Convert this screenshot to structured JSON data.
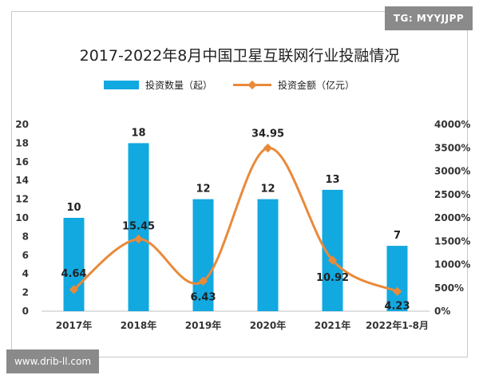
{
  "watermarks": {
    "top": "TG: MYYJJPP",
    "bottom": "www.drib-ll.com"
  },
  "chart_data": {
    "type": "bar",
    "title": "2017-2022年8月中国卫星互联网行业投融情况",
    "categories": [
      "2017年",
      "2018年",
      "2019年",
      "2020年",
      "2021年",
      "2022年1-8月"
    ],
    "series": [
      {
        "name": "投资数量（起）",
        "type": "bar",
        "axis": "left",
        "color": "#12a8e0",
        "values": [
          10,
          18,
          12,
          12,
          13,
          7
        ],
        "labels": [
          "10",
          "18",
          "12",
          "12",
          "13",
          "7"
        ]
      },
      {
        "name": "投资金额（亿元）",
        "type": "line",
        "axis": "right",
        "color": "#e98a3a",
        "values": [
          4.64,
          15.45,
          6.43,
          34.95,
          10.92,
          4.23
        ],
        "labels": [
          "4.64",
          "15.45",
          "6.43",
          "34.95",
          "10.92",
          "4.23"
        ]
      }
    ],
    "y_left": {
      "range": [
        0,
        20
      ],
      "ticks": [
        "0",
        "2",
        "4",
        "6",
        "8",
        "10",
        "12",
        "14",
        "16",
        "18",
        "20"
      ]
    },
    "y_right": {
      "range": [
        0,
        40
      ],
      "ticks": [
        "0%",
        "500%",
        "1000%",
        "1500%",
        "2000%",
        "2500%",
        "3000%",
        "3500%",
        "4000%"
      ]
    },
    "grid": false,
    "legend_position": "top"
  }
}
